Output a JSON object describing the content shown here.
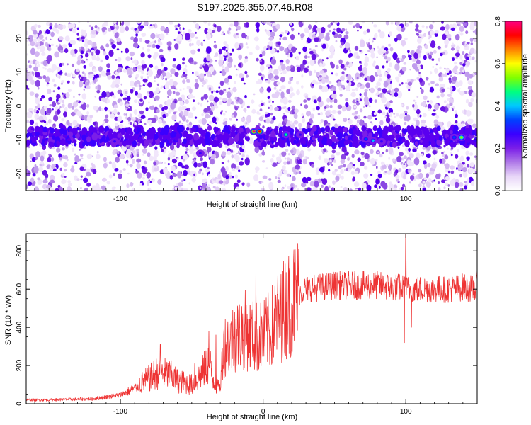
{
  "figure_title": "S197.2025.355.07.46.R08",
  "chart_data": [
    {
      "type": "heatmap",
      "title": "S197.2025.355.07.46.R08",
      "xlabel": "Height of straight line (km)",
      "ylabel": "Frequency (Hz)",
      "xlim": [
        -166,
        150
      ],
      "ylim": [
        -25,
        25
      ],
      "x_ticks": [
        -100,
        0,
        100
      ],
      "y_ticks": [
        -20,
        -10,
        0,
        10,
        20
      ],
      "colorbar": {
        "label": "Normalized spectral amplitude",
        "range": [
          0.0,
          0.8
        ],
        "ticks": [
          0.0,
          0.2,
          0.4,
          0.6,
          0.8
        ],
        "colormap": [
          "#ffffff",
          "#e8d6f8",
          "#b07ae8",
          "#7a1ee8",
          "#3a00ff",
          "#0040ff",
          "#00c8ff",
          "#00ff80",
          "#80ff00",
          "#ffff00",
          "#ff8000",
          "#ff0000",
          "#ff0080"
        ]
      },
      "band": {
        "frequency_center": -9,
        "frequency_halfwidth": 2.5
      },
      "gap": {
        "x_from": -10,
        "x_to": -5
      },
      "peaks": [
        {
          "x": -104,
          "y": -10.5,
          "amplitude": 0.25
        },
        {
          "x": -44,
          "y": -14,
          "amplitude": 0.28
        },
        {
          "x": -6.5,
          "y": -7.6,
          "amplitude": 0.78
        },
        {
          "x": -2.5,
          "y": -7.6,
          "amplitude": 0.72
        },
        {
          "x": 16,
          "y": -8.5,
          "amplitude": 0.45
        },
        {
          "x": 26,
          "y": -8.5,
          "amplitude": 0.3
        },
        {
          "x": 72,
          "y": -9.8,
          "amplitude": 0.35
        },
        {
          "x": 77,
          "y": -10.2,
          "amplitude": 0.4
        },
        {
          "x": 83,
          "y": -10.5,
          "amplitude": 0.3
        },
        {
          "x": 134,
          "y": -9.3,
          "amplitude": 0.35
        },
        {
          "x": 139,
          "y": -9.3,
          "amplitude": 0.55
        }
      ]
    },
    {
      "type": "line",
      "xlabel": "Height of straight line (km)",
      "ylabel": "SNR (10 * v/v)",
      "xlim": [
        -166,
        150
      ],
      "ylim": [
        0,
        890
      ],
      "x_ticks": [
        -100,
        0,
        100
      ],
      "y_ticks": [
        0,
        200,
        400,
        600,
        800
      ],
      "color": "#ee3333",
      "series": [
        {
          "x": [
            -166,
            -150,
            -140,
            -120,
            -110,
            -100,
            -90,
            -85,
            -80,
            -75,
            -70,
            -65,
            -60,
            -55,
            -50,
            -45,
            -40,
            -38,
            -35,
            -33,
            -30,
            -28,
            -25,
            -22,
            -20,
            -17,
            -15,
            -12,
            -10,
            -5,
            0,
            5,
            10,
            15,
            20,
            25,
            30,
            40,
            50,
            60,
            70,
            80,
            90,
            95,
            100,
            105,
            110,
            120,
            130,
            140,
            150
          ],
          "y": [
            20,
            20,
            22,
            25,
            35,
            45,
            80,
            110,
            130,
            160,
            160,
            150,
            120,
            110,
            100,
            140,
            190,
            220,
            130,
            110,
            80,
            300,
            320,
            330,
            360,
            360,
            370,
            390,
            360,
            350,
            350,
            390,
            450,
            500,
            540,
            580,
            600,
            610,
            620,
            620,
            620,
            620,
            610,
            610,
            600,
            600,
            600,
            600,
            600,
            610,
            600
          ]
        }
      ],
      "spikes": [
        {
          "x": -72,
          "y": 310
        },
        {
          "x": -48,
          "y": 210
        },
        {
          "x": -38,
          "y": 380
        },
        {
          "x": -33,
          "y": 360
        },
        {
          "x": -20,
          "y": 480
        },
        {
          "x": -15,
          "y": 510
        },
        {
          "x": -5,
          "y": 680
        },
        {
          "x": 100,
          "y": 890
        },
        {
          "x": 99,
          "y": 320
        },
        {
          "x": 104,
          "y": 400
        },
        {
          "x": 150,
          "y": 700
        }
      ]
    }
  ]
}
